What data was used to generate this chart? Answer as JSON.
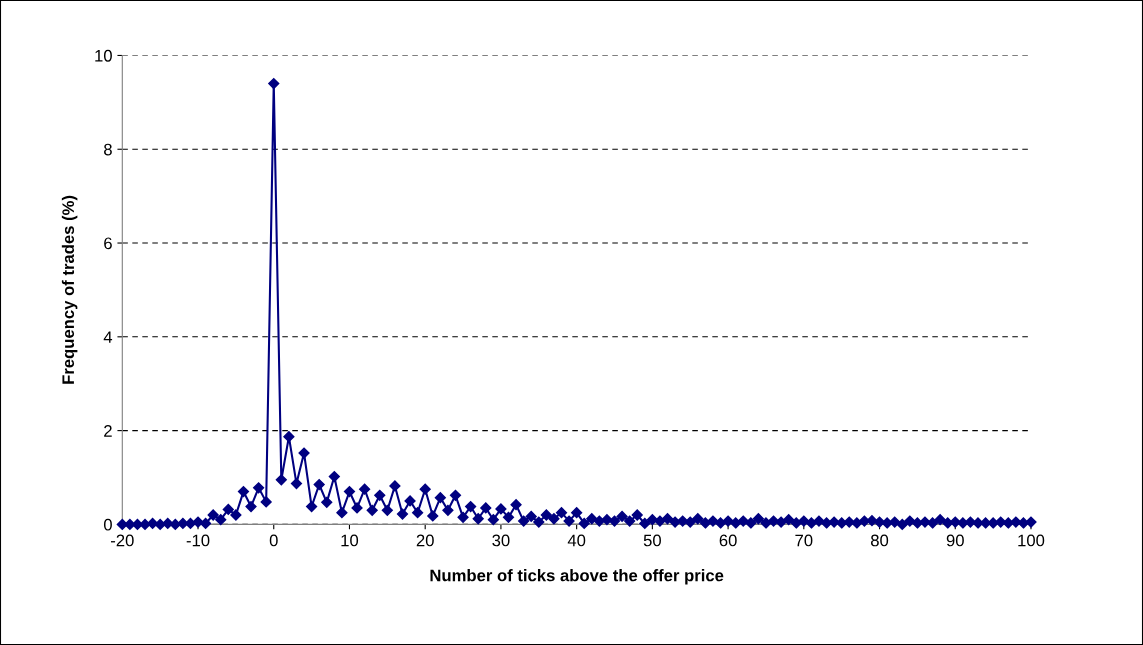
{
  "chart_data": {
    "type": "line",
    "xlabel": "Number of ticks above the offer price",
    "ylabel": "Frequency of trades (%)",
    "x": [
      -20,
      -19,
      -18,
      -17,
      -16,
      -15,
      -14,
      -13,
      -12,
      -11,
      -10,
      -9,
      -8,
      -7,
      -6,
      -5,
      -4,
      -3,
      -2,
      -1,
      0,
      1,
      2,
      3,
      4,
      5,
      6,
      7,
      8,
      9,
      10,
      11,
      12,
      13,
      14,
      15,
      16,
      17,
      18,
      19,
      20,
      21,
      22,
      23,
      24,
      25,
      26,
      27,
      28,
      29,
      30,
      31,
      32,
      33,
      34,
      35,
      36,
      37,
      38,
      39,
      40,
      41,
      42,
      43,
      44,
      45,
      46,
      47,
      48,
      49,
      50,
      51,
      52,
      53,
      54,
      55,
      56,
      57,
      58,
      59,
      60,
      61,
      62,
      63,
      64,
      65,
      66,
      67,
      68,
      69,
      70,
      71,
      72,
      73,
      74,
      75,
      76,
      77,
      78,
      79,
      80,
      81,
      82,
      83,
      84,
      85,
      86,
      87,
      88,
      89,
      90,
      91,
      92,
      93,
      94,
      95,
      96,
      97,
      98,
      99,
      100
    ],
    "series": [
      {
        "color": "#000080",
        "values": [
          0,
          0,
          0,
          0,
          0.02,
          0,
          0.02,
          0,
          0.02,
          0.02,
          0.05,
          0.02,
          0.2,
          0.1,
          0.32,
          0.2,
          0.7,
          0.38,
          0.78,
          0.48,
          9.4,
          0.95,
          1.87,
          0.87,
          1.52,
          0.38,
          0.85,
          0.47,
          1.02,
          0.25,
          0.7,
          0.35,
          0.75,
          0.3,
          0.62,
          0.3,
          0.82,
          0.22,
          0.5,
          0.25,
          0.75,
          0.18,
          0.57,
          0.3,
          0.62,
          0.15,
          0.38,
          0.12,
          0.35,
          0.1,
          0.33,
          0.15,
          0.42,
          0.07,
          0.17,
          0.05,
          0.2,
          0.12,
          0.25,
          0.07,
          0.25,
          0.02,
          0.12,
          0.07,
          0.1,
          0.07,
          0.17,
          0.07,
          0.2,
          0.02,
          0.1,
          0.07,
          0.12,
          0.05,
          0.07,
          0.05,
          0.12,
          0.03,
          0.07,
          0.03,
          0.07,
          0.03,
          0.07,
          0.03,
          0.12,
          0.03,
          0.07,
          0.05,
          0.1,
          0.03,
          0.07,
          0.03,
          0.07,
          0.03,
          0.05,
          0.03,
          0.05,
          0.03,
          0.07,
          0.08,
          0.05,
          0.03,
          0.05,
          0,
          0.07,
          0.03,
          0.05,
          0.03,
          0.1,
          0.03,
          0.05,
          0.03,
          0.05,
          0.03,
          0.03,
          0.03,
          0.05,
          0.03,
          0.05,
          0.03,
          0.05
        ]
      }
    ],
    "xlim": [
      -20,
      100
    ],
    "xticks": [
      -20,
      -10,
      0,
      10,
      20,
      30,
      40,
      50,
      60,
      70,
      80,
      90,
      100
    ],
    "ylim": [
      0,
      10
    ],
    "yticks": [
      0,
      2,
      4,
      6,
      8,
      10
    ],
    "grid": "y",
    "marker": "diamond",
    "line_style": "solid",
    "legend": false
  }
}
